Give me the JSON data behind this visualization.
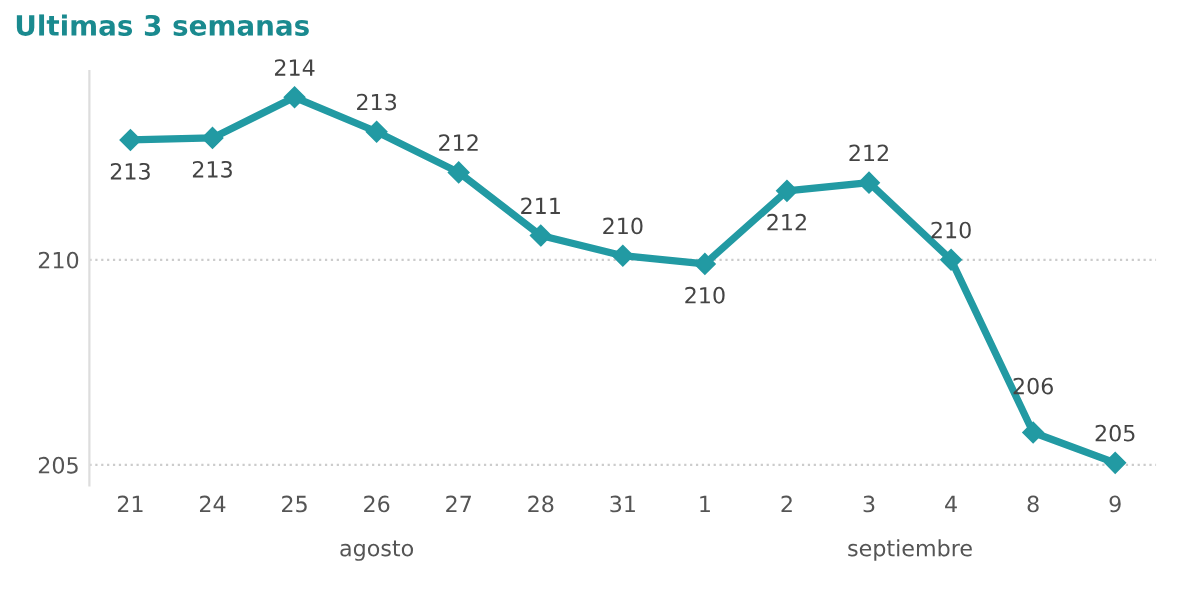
{
  "chart_data": {
    "type": "line",
    "title": "Ultimas 3 semanas",
    "categories": [
      "21",
      "24",
      "25",
      "26",
      "27",
      "28",
      "31",
      "1",
      "2",
      "3",
      "4",
      "8",
      "9"
    ],
    "series": [
      {
        "color": "#229aa3",
        "values": [
          212.92,
          212.97,
          213.96,
          213.12,
          212.13,
          210.59,
          210.1,
          209.9,
          211.68,
          211.88,
          210.0,
          205.79,
          205.05
        ],
        "value_labels": [
          "213",
          "213",
          "214",
          "213",
          "212",
          "211",
          "210",
          "210",
          "212",
          "212",
          "210",
          "206",
          "205"
        ]
      }
    ],
    "ylim": [
      204.5,
      214.6
    ],
    "yticks": [
      205,
      210
    ],
    "grid": "y",
    "marker": "diamond",
    "line_style": "solid",
    "legend": false,
    "annotations": [
      "agosto",
      "septiembre"
    ]
  }
}
